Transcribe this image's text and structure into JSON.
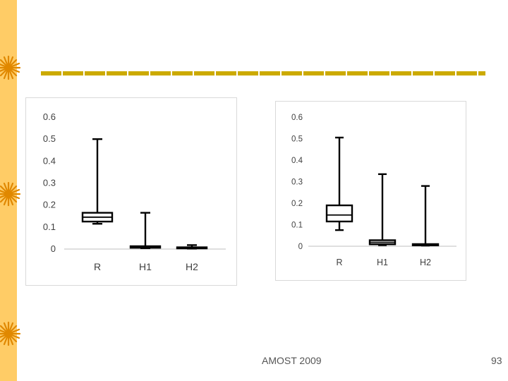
{
  "footer": {
    "conference": "AMOST 2009",
    "page_number": "93"
  },
  "theme": {
    "sidebar_color": "#ffcc66",
    "rule_color": "#ccaa00",
    "sun_color": "#e08800"
  },
  "chart_data": [
    {
      "type": "boxplot",
      "categories": [
        "R",
        "H1",
        "H2"
      ],
      "ylim": [
        0,
        0.6
      ],
      "yticks": [
        "0",
        "0.1",
        "0.2",
        "0.3",
        "0.4",
        "0.5",
        "0.6"
      ],
      "grid": false,
      "boxes": [
        {
          "min": 0.115,
          "q1": 0.125,
          "median": 0.145,
          "q3": 0.165,
          "max": 0.5
        },
        {
          "min": 0.004,
          "q1": 0.006,
          "median": 0.009,
          "q3": 0.013,
          "max": 0.165
        },
        {
          "min": 0.002,
          "q1": 0.003,
          "median": 0.005,
          "q3": 0.008,
          "max": 0.018
        }
      ]
    },
    {
      "type": "boxplot",
      "categories": [
        "R",
        "H1",
        "H2"
      ],
      "ylim": [
        0,
        0.6
      ],
      "yticks": [
        "0",
        "0.1",
        "0.2",
        "0.3",
        "0.4",
        "0.5",
        "0.6"
      ],
      "grid": false,
      "boxes": [
        {
          "min": 0.075,
          "q1": 0.115,
          "median": 0.145,
          "q3": 0.19,
          "max": 0.505
        },
        {
          "min": 0.005,
          "q1": 0.009,
          "median": 0.018,
          "q3": 0.028,
          "max": 0.335
        },
        {
          "min": 0.003,
          "q1": 0.004,
          "median": 0.007,
          "q3": 0.01,
          "max": 0.28
        }
      ]
    }
  ]
}
